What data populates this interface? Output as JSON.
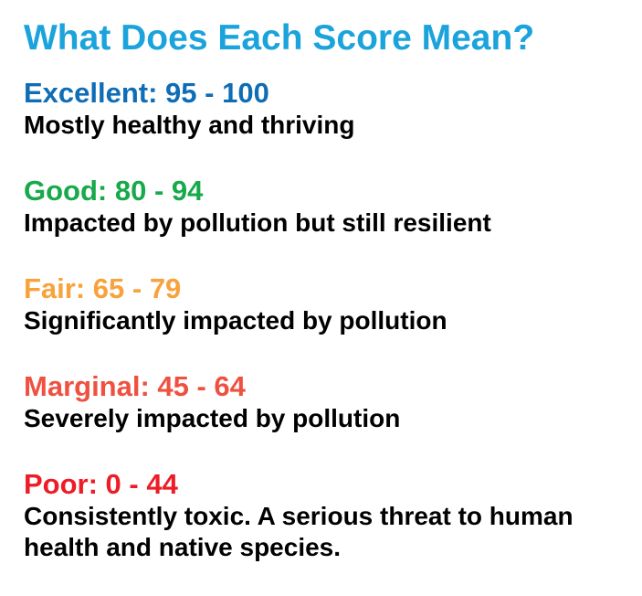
{
  "title": "What Does Each Score Mean?",
  "colors": {
    "title": "#1ba3dc",
    "excellent": "#0f6db5",
    "good": "#17a94a",
    "fair": "#f8a23b",
    "marginal": "#ef5140",
    "poor": "#ee1c26",
    "description": "#000000"
  },
  "scores": [
    {
      "heading": "Excellent: 95 - 100",
      "description": "Mostly healthy and thriving"
    },
    {
      "heading": "Good: 80 - 94",
      "description": "Impacted by pollution but still resilient"
    },
    {
      "heading": "Fair: 65 - 79",
      "description": "Significantly impacted by pollution"
    },
    {
      "heading": "Marginal: 45 - 64",
      "description": "Severely impacted by pollution"
    },
    {
      "heading": "Poor: 0 - 44",
      "description": "Consistently toxic. A serious threat to human health and native species."
    }
  ]
}
